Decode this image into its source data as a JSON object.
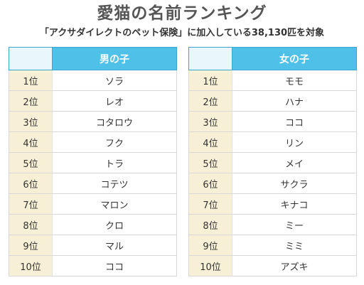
{
  "title": "愛猫の名前ランキング",
  "subtitle": "「アクサダイレクトのペット保険」に加入している38,130匹を対象",
  "colors": {
    "header_blue": "#4fc1e9",
    "rank_cell_bg": "#f7efd6",
    "title_gray": "#555555"
  },
  "tables": [
    {
      "header": "男の子",
      "rows": [
        {
          "rank": "1位",
          "name": "ソラ"
        },
        {
          "rank": "2位",
          "name": "レオ"
        },
        {
          "rank": "3位",
          "name": "コタロウ"
        },
        {
          "rank": "4位",
          "name": "フク"
        },
        {
          "rank": "5位",
          "name": "トラ"
        },
        {
          "rank": "6位",
          "name": "コテツ"
        },
        {
          "rank": "7位",
          "name": "マロン"
        },
        {
          "rank": "8位",
          "name": "クロ"
        },
        {
          "rank": "9位",
          "name": "マル"
        },
        {
          "rank": "10位",
          "name": "ココ"
        }
      ]
    },
    {
      "header": "女の子",
      "rows": [
        {
          "rank": "1位",
          "name": "モモ"
        },
        {
          "rank": "2位",
          "name": "ハナ"
        },
        {
          "rank": "3位",
          "name": "ココ"
        },
        {
          "rank": "4位",
          "name": "リン"
        },
        {
          "rank": "5位",
          "name": "メイ"
        },
        {
          "rank": "6位",
          "name": "サクラ"
        },
        {
          "rank": "7位",
          "name": "キナコ"
        },
        {
          "rank": "8位",
          "name": "ミー"
        },
        {
          "rank": "9位",
          "name": "ミミ"
        },
        {
          "rank": "10位",
          "name": "アズキ"
        }
      ]
    }
  ]
}
